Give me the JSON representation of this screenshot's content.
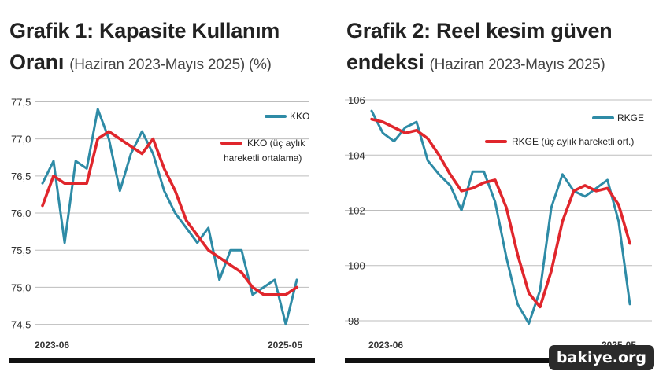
{
  "chart_data": [
    {
      "type": "line",
      "title": "Grafik 1: Kapasite Kullanım",
      "title_line2": "Oranı",
      "subtitle": "(Haziran 2023-Mayıs 2025) (%)",
      "x": [
        "2023-06",
        "2023-07",
        "2023-08",
        "2023-09",
        "2023-10",
        "2023-11",
        "2023-12",
        "2024-01",
        "2024-02",
        "2024-03",
        "2024-04",
        "2024-05",
        "2024-06",
        "2024-07",
        "2024-08",
        "2024-09",
        "2024-10",
        "2024-11",
        "2024-12",
        "2025-01",
        "2025-02",
        "2025-03",
        "2025-04",
        "2025-05"
      ],
      "x_tick_labels": [
        "2023-06",
        "2025-05"
      ],
      "ylim": [
        74.4,
        77.6
      ],
      "y_ticks": [
        "77,5",
        "77,0",
        "76,5",
        "76,0",
        "75,5",
        "75,0",
        "74,5"
      ],
      "y_tick_values": [
        77.5,
        77.0,
        76.5,
        76.0,
        75.5,
        75.0,
        74.5
      ],
      "grid": "horizontal",
      "legend_position": "top-right",
      "series": [
        {
          "name": "KKO",
          "color": "#2e8ba6",
          "values": [
            76.4,
            76.7,
            75.6,
            76.7,
            76.6,
            77.4,
            77.0,
            76.3,
            76.8,
            77.1,
            76.8,
            76.3,
            76.0,
            75.8,
            75.6,
            75.8,
            75.1,
            75.5,
            75.5,
            74.9,
            75.0,
            75.1,
            74.5,
            75.1
          ]
        },
        {
          "name": "KKO (üç aylık hareketli ortalama)",
          "name_lines": [
            "KKO (üç aylık",
            "hareketli ortalama)"
          ],
          "color": "#e0262c",
          "values": [
            76.1,
            76.5,
            76.4,
            76.4,
            76.4,
            77.0,
            77.1,
            77.0,
            76.9,
            76.8,
            77.0,
            76.6,
            76.3,
            75.9,
            75.7,
            75.5,
            75.4,
            75.3,
            75.2,
            75.0,
            74.9,
            74.9,
            74.9,
            75.0
          ]
        }
      ]
    },
    {
      "type": "line",
      "title": "Grafik 2: Reel kesim güven",
      "title_line2": "endeksi",
      "subtitle": "(Haziran 2023-Mayıs 2025)",
      "x": [
        "2023-06",
        "2023-07",
        "2023-08",
        "2023-09",
        "2023-10",
        "2023-11",
        "2023-12",
        "2024-01",
        "2024-02",
        "2024-03",
        "2024-04",
        "2024-05",
        "2024-06",
        "2024-07",
        "2024-08",
        "2024-09",
        "2024-10",
        "2024-11",
        "2024-12",
        "2025-01",
        "2025-02",
        "2025-03",
        "2025-04",
        "2025-05"
      ],
      "x_tick_labels": [
        "2023-06",
        "2025-05"
      ],
      "ylim": [
        97.6,
        106.2
      ],
      "y_ticks": [
        "106",
        "104",
        "102",
        "100",
        "98"
      ],
      "y_tick_values": [
        106,
        104,
        102,
        100,
        98
      ],
      "grid": "horizontal",
      "legend_position": "top-right",
      "series": [
        {
          "name": "RKGE",
          "color": "#2e8ba6",
          "values": [
            105.6,
            104.8,
            104.5,
            105.0,
            105.2,
            103.8,
            103.3,
            102.9,
            102.0,
            103.4,
            103.4,
            102.3,
            100.3,
            98.6,
            97.9,
            99.1,
            102.1,
            103.3,
            102.7,
            102.5,
            102.8,
            103.1,
            101.6,
            98.6
          ]
        },
        {
          "name": "RKGE (üç aylık hareketli ort.)",
          "color": "#e0262c",
          "values": [
            105.3,
            105.2,
            105.0,
            104.8,
            104.9,
            104.6,
            104.0,
            103.3,
            102.7,
            102.8,
            103.0,
            103.1,
            102.1,
            100.4,
            99.0,
            98.5,
            99.8,
            101.6,
            102.7,
            102.9,
            102.7,
            102.8,
            102.2,
            100.8
          ]
        }
      ]
    }
  ],
  "watermark": "bakiye.org"
}
